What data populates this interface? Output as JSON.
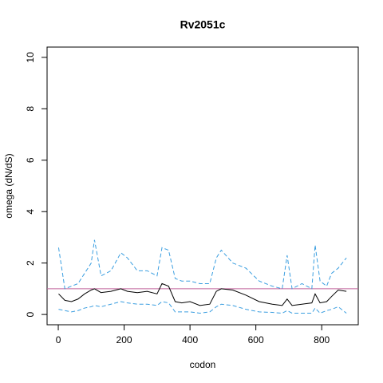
{
  "chart_data": {
    "type": "line",
    "title": "Rv2051c",
    "xlabel": "codon",
    "ylabel": "omega (dN/dS)",
    "x": [
      1,
      20,
      40,
      60,
      80,
      100,
      110,
      130,
      160,
      190,
      210,
      240,
      270,
      300,
      315,
      335,
      355,
      375,
      400,
      430,
      460,
      480,
      495,
      530,
      570,
      610,
      650,
      680,
      695,
      710,
      740,
      770,
      780,
      795,
      815,
      830,
      850,
      875
    ],
    "series": [
      {
        "color": "#3a9ee0",
        "dashed": true,
        "values": [
          2.6,
          1.0,
          1.1,
          1.2,
          1.6,
          2.0,
          2.9,
          1.5,
          1.7,
          2.4,
          2.2,
          1.7,
          1.7,
          1.5,
          2.6,
          2.5,
          1.4,
          1.3,
          1.3,
          1.2,
          1.2,
          2.2,
          2.5,
          2.0,
          1.8,
          1.3,
          1.1,
          1.0,
          2.3,
          1.0,
          1.2,
          1.0,
          2.7,
          1.3,
          1.1,
          1.6,
          1.8,
          2.2
        ]
      },
      {
        "color": "#000000",
        "dashed": false,
        "values": [
          0.8,
          0.55,
          0.5,
          0.6,
          0.8,
          0.95,
          1.0,
          0.85,
          0.9,
          1.0,
          0.9,
          0.85,
          0.9,
          0.8,
          1.2,
          1.1,
          0.5,
          0.45,
          0.5,
          0.35,
          0.4,
          0.9,
          1.0,
          0.95,
          0.75,
          0.5,
          0.4,
          0.35,
          0.6,
          0.35,
          0.4,
          0.45,
          0.8,
          0.45,
          0.5,
          0.7,
          0.95,
          0.9
        ]
      },
      {
        "color": "#3a9ee0",
        "dashed": true,
        "values": [
          0.2,
          0.15,
          0.1,
          0.15,
          0.25,
          0.3,
          0.35,
          0.3,
          0.4,
          0.5,
          0.45,
          0.4,
          0.4,
          0.35,
          0.5,
          0.45,
          0.1,
          0.1,
          0.1,
          0.05,
          0.1,
          0.3,
          0.4,
          0.35,
          0.2,
          0.1,
          0.08,
          0.05,
          0.15,
          0.05,
          0.05,
          0.05,
          0.25,
          0.05,
          0.15,
          0.2,
          0.3,
          0.05
        ]
      }
    ],
    "hline": {
      "value": 1,
      "color": "#c0609a"
    },
    "xlim": [
      -34,
      911
    ],
    "ylim": [
      -0.4,
      10.4
    ],
    "xticks": [
      0,
      200,
      400,
      600,
      800
    ],
    "yticks": [
      0,
      2,
      4,
      6,
      8,
      10
    ]
  }
}
